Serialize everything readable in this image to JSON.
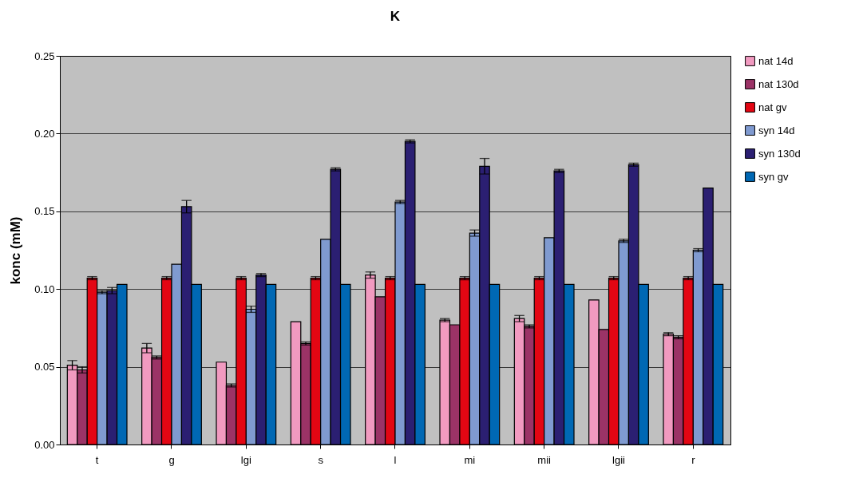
{
  "chart_data": {
    "type": "bar",
    "title": "K",
    "ylabel": "konc (mM)",
    "categories": [
      "t",
      "g",
      "lgi",
      "s",
      "l",
      "mi",
      "mii",
      "lgii",
      "r"
    ],
    "series": [
      {
        "name": "nat 14d",
        "color": "#f19ac0",
        "values": [
          0.051,
          0.062,
          0.053,
          0.079,
          0.109,
          0.08,
          0.081,
          0.093,
          0.071
        ],
        "errors": [
          0.003,
          0.003,
          null,
          null,
          0.002,
          0.001,
          0.002,
          null,
          0.001
        ]
      },
      {
        "name": "nat 130d",
        "color": "#9b3366",
        "values": [
          0.048,
          0.056,
          0.038,
          0.065,
          0.095,
          0.077,
          0.076,
          0.074,
          0.069
        ],
        "errors": [
          0.002,
          0.001,
          0.001,
          0.001,
          null,
          null,
          0.001,
          null,
          0.001
        ]
      },
      {
        "name": "nat gv",
        "color": "#e30613",
        "values": [
          0.107,
          0.107,
          0.107,
          0.107,
          0.107,
          0.107,
          0.107,
          0.107,
          0.107
        ],
        "errors": [
          0.001,
          0.001,
          0.001,
          0.001,
          0.001,
          0.001,
          0.001,
          0.001,
          0.001
        ]
      },
      {
        "name": "syn 14d",
        "color": "#7f9ad0",
        "values": [
          0.098,
          0.116,
          0.087,
          0.132,
          0.156,
          0.136,
          0.133,
          0.131,
          0.125
        ],
        "errors": [
          0.001,
          null,
          0.002,
          null,
          0.001,
          0.002,
          null,
          0.001,
          0.001
        ]
      },
      {
        "name": "syn 130d",
        "color": "#2b1f72",
        "values": [
          0.099,
          0.153,
          0.109,
          0.177,
          0.195,
          0.179,
          0.176,
          0.18,
          0.165
        ],
        "errors": [
          0.002,
          0.004,
          0.001,
          0.001,
          0.001,
          0.005,
          0.001,
          0.001,
          null
        ]
      },
      {
        "name": "syn gv",
        "color": "#0068b4",
        "values": [
          0.103,
          0.103,
          0.103,
          0.103,
          0.103,
          0.103,
          0.103,
          0.103,
          0.103
        ]
      }
    ],
    "ylim": [
      0,
      0.25
    ],
    "yticks": [
      {
        "value": 0,
        "label": "0.00"
      },
      {
        "value": 0.05,
        "label": "0.05"
      },
      {
        "value": 0.1,
        "label": "0.10"
      },
      {
        "value": 0.15,
        "label": "0.15"
      },
      {
        "value": 0.2,
        "label": "0.20"
      },
      {
        "value": 0.25,
        "label": "0.25"
      }
    ],
    "grid": "y",
    "legend": "right"
  }
}
